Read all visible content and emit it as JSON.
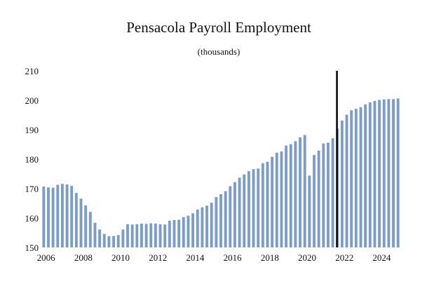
{
  "chart_data": {
    "type": "bar",
    "title": "Pensacola Payroll Employment",
    "subtitle": "(thousands)",
    "xlabel": "",
    "ylabel": "",
    "ylim": [
      150,
      210
    ],
    "yticks": [
      150,
      160,
      170,
      180,
      190,
      200,
      210
    ],
    "xticks": [
      "2006",
      "2008",
      "2010",
      "2012",
      "2014",
      "2016",
      "2018",
      "2020",
      "2022",
      "2024"
    ],
    "x_start": 2005.75,
    "period": "quarterly",
    "grid": false,
    "legend": "none",
    "bar_color": "#7a9ccc",
    "divider_color": "#000000",
    "divider_position": 2021.6,
    "values": [
      170.7,
      170.4,
      170.3,
      171.3,
      171.6,
      171.4,
      170.9,
      168.5,
      166.6,
      164.3,
      162.1,
      158.4,
      156.1,
      154.6,
      153.8,
      153.9,
      154.2,
      156.1,
      157.9,
      157.8,
      157.9,
      158.1,
      158.0,
      158.2,
      158.1,
      157.9,
      157.8,
      159.1,
      159.3,
      159.4,
      160.3,
      160.8,
      161.6,
      162.9,
      163.6,
      164.2,
      165.2,
      167.1,
      168.1,
      169.1,
      170.8,
      172.2,
      173.7,
      174.8,
      175.9,
      176.6,
      176.8,
      178.6,
      179.1,
      180.8,
      182.2,
      182.6,
      184.6,
      185.1,
      186.1,
      187.4,
      188.2,
      174.4,
      181.4,
      182.9,
      185.3,
      185.6,
      187.1,
      190.4,
      193.1,
      195.1,
      196.6,
      197.1,
      197.6,
      198.6,
      199.3,
      199.8,
      200.1,
      200.3,
      200.4,
      200.4,
      200.6
    ]
  }
}
